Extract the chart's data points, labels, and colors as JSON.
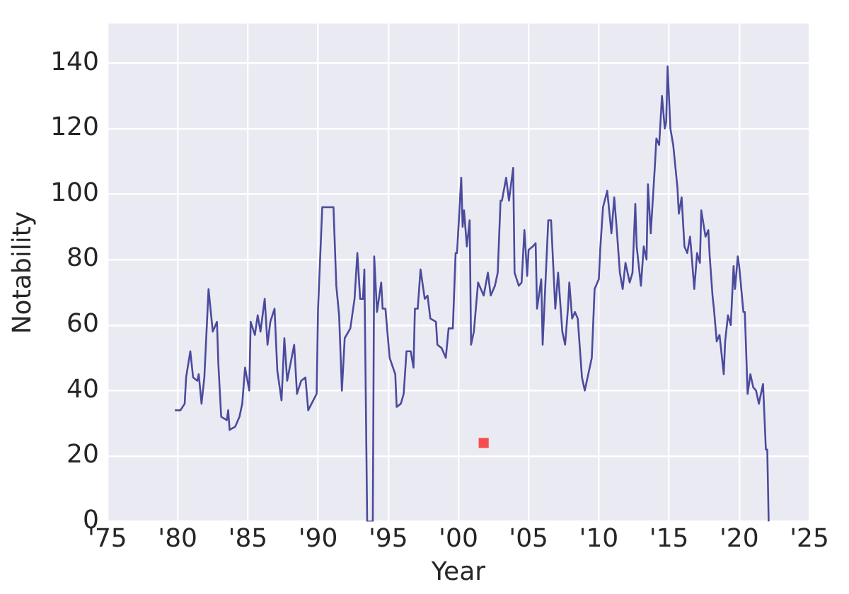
{
  "chart_data": {
    "type": "line",
    "xlabel": "Year",
    "ylabel": "Notability",
    "xlim": [
      1975,
      2025
    ],
    "ylim": [
      0,
      152
    ],
    "xticks": [
      {
        "value": 1975,
        "label": "'75"
      },
      {
        "value": 1980,
        "label": "'80"
      },
      {
        "value": 1985,
        "label": "'85"
      },
      {
        "value": 1990,
        "label": "'90"
      },
      {
        "value": 1995,
        "label": "'95"
      },
      {
        "value": 2000,
        "label": "'00"
      },
      {
        "value": 2005,
        "label": "'05"
      },
      {
        "value": 2010,
        "label": "'10"
      },
      {
        "value": 2015,
        "label": "'15"
      },
      {
        "value": 2020,
        "label": "'20"
      },
      {
        "value": 2025,
        "label": "'25"
      }
    ],
    "yticks": [
      0,
      20,
      40,
      60,
      80,
      100,
      120,
      140
    ],
    "grid": true,
    "legend": false,
    "series": [
      {
        "color": "#4b4b9e",
        "marker": "none",
        "line_style": "solid",
        "x": [
          1979.8,
          1980.2,
          1980.5,
          1980.6,
          1980.9,
          1981.1,
          1981.4,
          1981.5,
          1981.7,
          1981.9,
          1982.2,
          1982.5,
          1982.8,
          1982.9,
          1983.1,
          1983.5,
          1983.6,
          1983.7,
          1984.1,
          1984.4,
          1984.6,
          1984.8,
          1985.1,
          1985.2,
          1985.5,
          1985.7,
          1985.9,
          1986.2,
          1986.4,
          1986.6,
          1986.9,
          1987.1,
          1987.4,
          1987.6,
          1987.8,
          1988.3,
          1988.5,
          1988.8,
          1989.1,
          1989.3,
          1989.9,
          1990.0,
          1990.3,
          1991.1,
          1991.3,
          1991.5,
          1991.7,
          1991.9,
          1992.3,
          1992.6,
          1992.8,
          1993.0,
          1993.2,
          1993.3,
          1993.5,
          1993.9,
          1994.0,
          1994.2,
          1994.5,
          1994.6,
          1994.8,
          1995.1,
          1995.5,
          1995.6,
          1995.9,
          1996.1,
          1996.3,
          1996.6,
          1996.8,
          1996.9,
          1997.1,
          1997.3,
          1997.6,
          1997.8,
          1998.0,
          1998.4,
          1998.5,
          1998.8,
          1999.1,
          1999.3,
          1999.6,
          1999.8,
          1999.9,
          2000.2,
          2000.3,
          2000.4,
          2000.6,
          2000.8,
          2000.9,
          2001.1,
          2001.4,
          2001.6,
          2001.8,
          2002.1,
          2002.3,
          2002.6,
          2002.8,
          2003.0,
          2003.1,
          2003.4,
          2003.6,
          2003.9,
          2004.0,
          2004.3,
          2004.5,
          2004.7,
          2004.9,
          2005.0,
          2005.3,
          2005.5,
          2005.6,
          2005.9,
          2006.0,
          2006.4,
          2006.6,
          2006.9,
          2007.1,
          2007.4,
          2007.6,
          2007.8,
          2007.9,
          2008.1,
          2008.3,
          2008.5,
          2008.6,
          2008.8,
          2009.0,
          2009.3,
          2009.5,
          2009.7,
          2010.0,
          2010.1,
          2010.3,
          2010.6,
          2010.9,
          2011.1,
          2011.3,
          2011.5,
          2011.7,
          2011.9,
          2012.2,
          2012.4,
          2012.6,
          2012.7,
          2013.0,
          2013.2,
          2013.4,
          2013.5,
          2013.7,
          2014.0,
          2014.1,
          2014.3,
          2014.5,
          2014.7,
          2014.8,
          2014.9,
          2015.1,
          2015.3,
          2015.6,
          2015.7,
          2015.9,
          2016.1,
          2016.3,
          2016.5,
          2016.6,
          2016.8,
          2017.0,
          2017.2,
          2017.3,
          2017.6,
          2017.8,
          2017.9,
          2018.1,
          2018.2,
          2018.4,
          2018.6,
          2018.9,
          2019.0,
          2019.2,
          2019.4,
          2019.6,
          2019.7,
          2019.9,
          2020.0,
          2020.3,
          2020.4,
          2020.6,
          2020.8,
          2021.0,
          2021.2,
          2021.4,
          2021.7,
          2021.9,
          2022.0,
          2022.1
        ],
        "values": [
          34,
          34,
          36,
          44,
          52,
          44,
          43,
          45,
          36,
          44,
          71,
          58,
          61,
          48,
          32,
          31,
          34,
          28,
          29,
          32,
          36,
          47,
          40,
          61,
          57,
          63,
          58,
          68,
          54,
          61,
          65,
          46,
          37,
          56,
          43,
          54,
          39,
          43,
          44,
          34,
          39,
          65,
          96,
          96,
          72,
          63,
          40,
          56,
          59,
          68,
          82,
          68,
          68,
          77,
          0,
          0,
          81,
          64,
          73,
          65,
          65,
          50,
          45,
          35,
          36,
          39,
          52,
          52,
          47,
          65,
          65,
          77,
          68,
          69,
          62,
          61,
          54,
          53,
          50,
          59,
          59,
          82,
          82,
          105,
          90,
          95,
          84,
          92,
          54,
          58,
          73,
          71,
          69,
          76,
          69,
          72,
          76,
          98,
          98,
          105,
          98,
          108,
          76,
          72,
          73,
          89,
          75,
          83,
          84,
          85,
          65,
          74,
          54,
          92,
          92,
          65,
          76,
          58,
          54,
          65,
          73,
          62,
          64,
          62,
          56,
          44,
          40,
          46,
          50,
          71,
          74,
          83,
          96,
          101,
          88,
          99,
          88,
          76,
          71,
          79,
          73,
          76,
          97,
          84,
          72,
          84,
          80,
          103,
          88,
          109,
          117,
          115,
          130,
          120,
          122,
          139,
          120,
          115,
          102,
          94,
          99,
          84,
          82,
          87,
          82,
          71,
          82,
          79,
          95,
          87,
          89,
          81,
          69,
          65,
          55,
          57,
          45,
          55,
          63,
          60,
          78,
          71,
          81,
          78,
          64,
          64,
          39,
          45,
          41,
          40,
          36,
          42,
          22,
          22,
          0
        ]
      },
      {
        "type": "scatter",
        "color": "#f94c4c",
        "marker": "square",
        "x": [
          2001.8
        ],
        "values": [
          24
        ]
      }
    ]
  }
}
